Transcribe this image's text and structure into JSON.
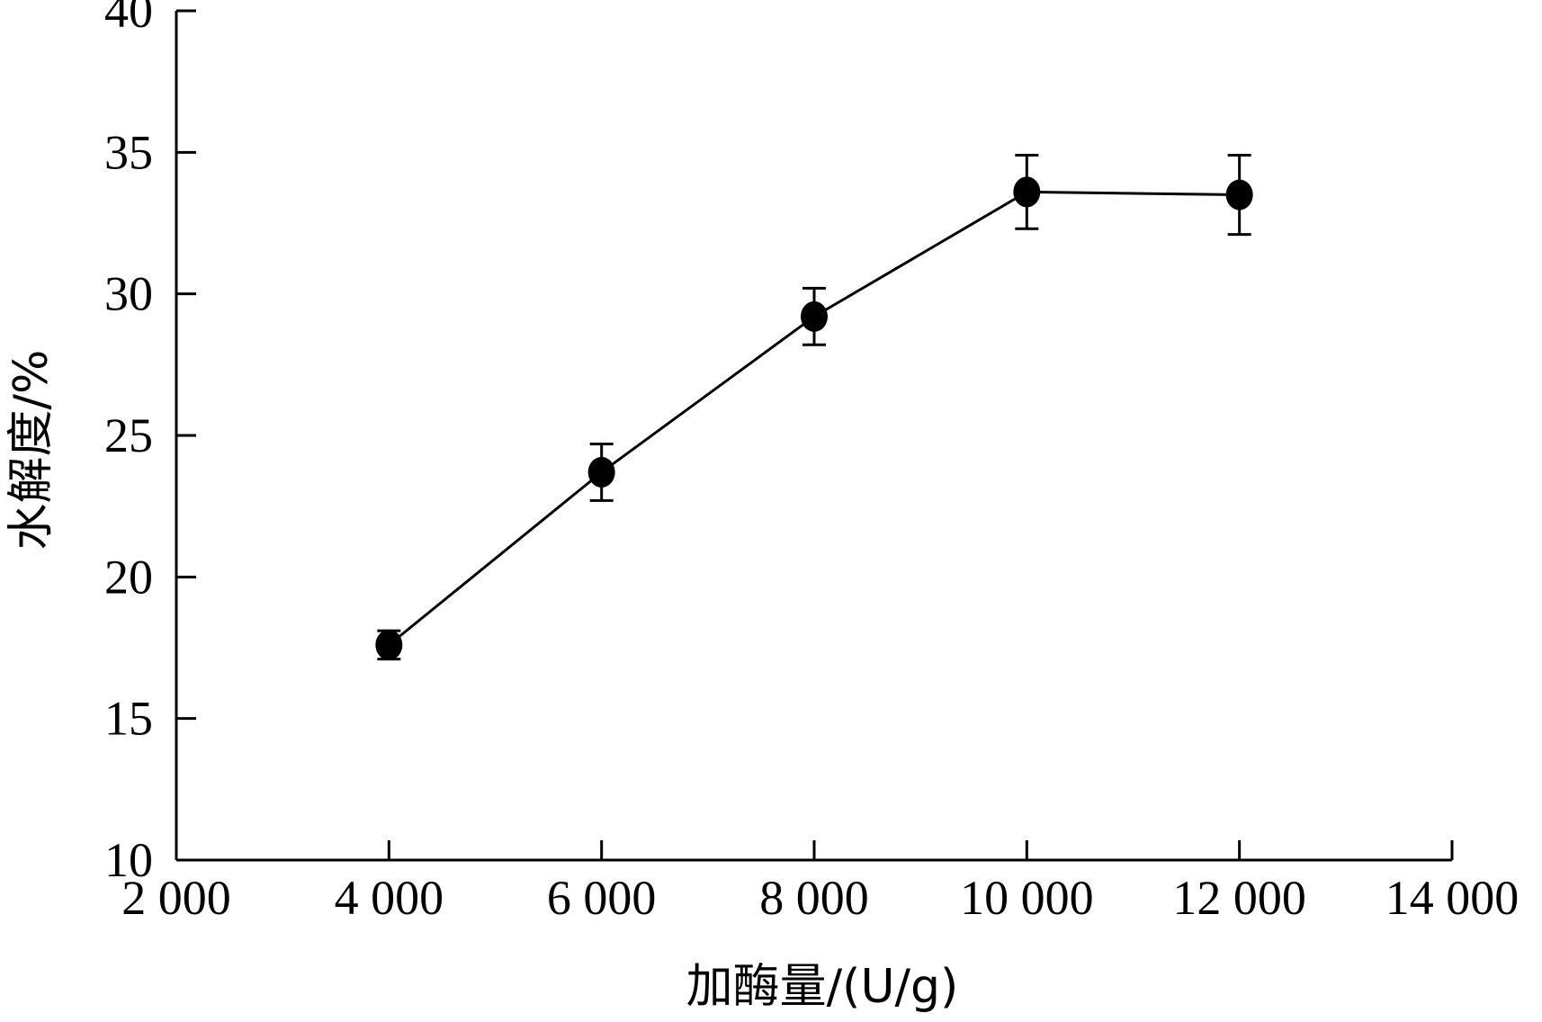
{
  "chart_data": {
    "type": "line",
    "xlabel": "加酶量/(U/g)",
    "ylabel": "水解度/%",
    "xlim": [
      2000,
      14000
    ],
    "ylim": [
      10,
      40
    ],
    "x_ticks": [
      2000,
      4000,
      6000,
      8000,
      10000,
      12000,
      14000
    ],
    "x_tick_labels": [
      "2 000",
      "4 000",
      "6 000",
      "8 000",
      "10 000",
      "12 000",
      "14 000"
    ],
    "y_ticks": [
      10,
      15,
      20,
      25,
      30,
      35,
      40
    ],
    "y_tick_labels": [
      "10",
      "15",
      "20",
      "25",
      "30",
      "35",
      "40"
    ],
    "grid": false,
    "series": [
      {
        "x": [
          4000,
          6000,
          8000,
          10000,
          12000
        ],
        "y": [
          17.6,
          23.7,
          29.2,
          33.6,
          33.5
        ],
        "error": [
          0.5,
          1.0,
          1.0,
          1.3,
          1.4
        ],
        "marker": "filled-circle",
        "color": "#000000"
      }
    ]
  }
}
